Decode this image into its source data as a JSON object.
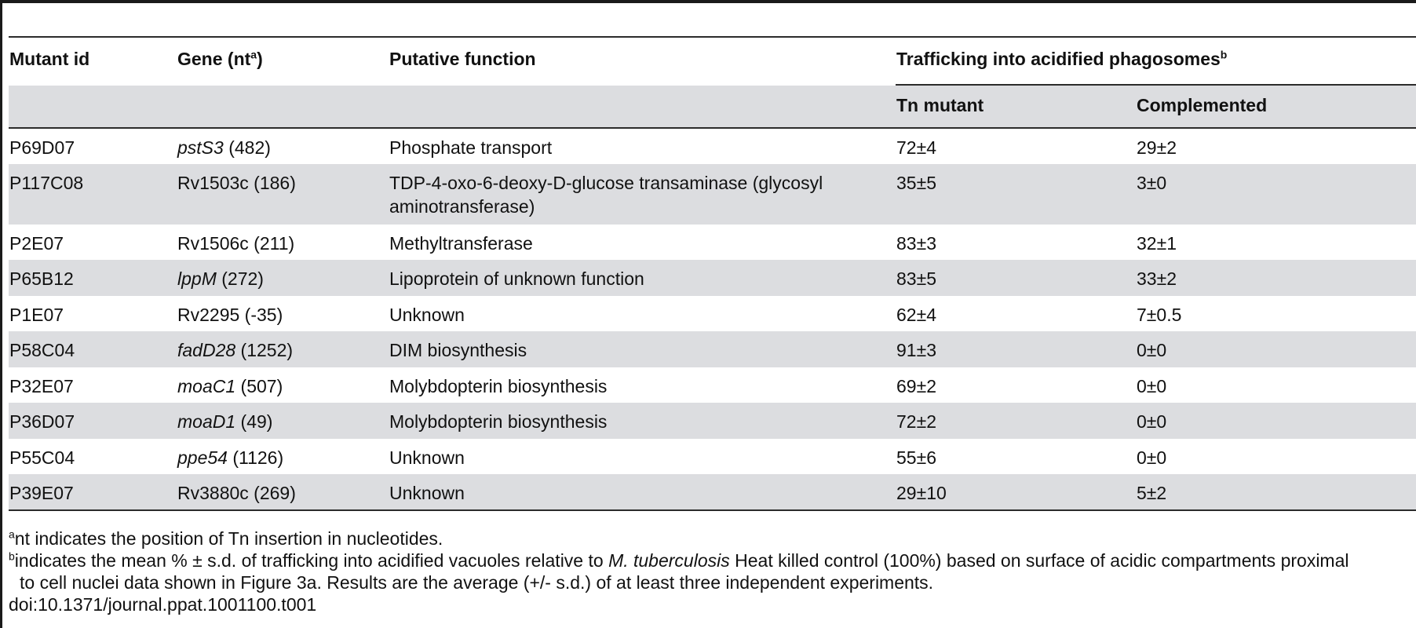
{
  "table": {
    "headers": {
      "mutant_id": "Mutant id",
      "gene": "Gene (nt",
      "gene_sup": "a",
      "gene_close": ")",
      "function": "Putative function",
      "trafficking": "Trafficking into acidified phagosomes",
      "trafficking_sup": "b",
      "tn_mutant": "Tn mutant",
      "complemented": "Complemented"
    },
    "rows": [
      {
        "id": "P69D07",
        "gene": "pstS3",
        "gene_italic": true,
        "nt": " (482)",
        "function": "Phosphate transport",
        "tn": "72±4",
        "comp": "29±2"
      },
      {
        "id": "P117C08",
        "gene": "Rv1503c",
        "gene_italic": false,
        "nt": " (186)",
        "function": "TDP-4-oxo-6-deoxy-D-glucose transaminase (glycosyl aminotransferase)",
        "tn": "35±5",
        "comp": "3±0"
      },
      {
        "id": "P2E07",
        "gene": "Rv1506c",
        "gene_italic": false,
        "nt": " (211)",
        "function": "Methyltransferase",
        "tn": "83±3",
        "comp": "32±1"
      },
      {
        "id": "P65B12",
        "gene": "lppM",
        "gene_italic": true,
        "nt": " (272)",
        "function": "Lipoprotein of unknown function",
        "tn": "83±5",
        "comp": "33±2"
      },
      {
        "id": "P1E07",
        "gene": "Rv2295",
        "gene_italic": false,
        "nt": " (-35)",
        "function": "Unknown",
        "tn": "62±4",
        "comp": "7±0.5"
      },
      {
        "id": "P58C04",
        "gene": "fadD28",
        "gene_italic": true,
        "nt": " (1252)",
        "function": "DIM biosynthesis",
        "tn": "91±3",
        "comp": "0±0"
      },
      {
        "id": "P32E07",
        "gene": "moaC1",
        "gene_italic": true,
        "nt": " (507)",
        "function": "Molybdopterin biosynthesis",
        "tn": "69±2",
        "comp": "0±0"
      },
      {
        "id": "P36D07",
        "gene": "moaD1",
        "gene_italic": true,
        "nt": " (49)",
        "function": "Molybdopterin biosynthesis",
        "tn": "72±2",
        "comp": "0±0"
      },
      {
        "id": "P55C04",
        "gene": "ppe54",
        "gene_italic": true,
        "nt": " (1126)",
        "function": "Unknown",
        "tn": "55±6",
        "comp": "0±0"
      },
      {
        "id": "P39E07",
        "gene": "Rv3880c",
        "gene_italic": false,
        "nt": " (269)",
        "function": "Unknown",
        "tn": "29±10",
        "comp": "5±2"
      }
    ]
  },
  "footnotes": {
    "a_mark": "a",
    "a_text": "nt indicates the position of Tn insertion in nucleotides.",
    "b_mark": "b",
    "b_text_1": "indicates the mean % ± s.d. of trafficking into acidified vacuoles relative to ",
    "b_italic": "M. tuberculosis",
    "b_text_2": " Heat killed control (100%) based on surface of acidic compartments proximal",
    "b_text_3": "to cell nuclei data shown in Figure 3a. Results are the average (+/- s.d.) of at least three independent experiments.",
    "doi": "doi:10.1371/journal.ppat.1001100.t001"
  }
}
